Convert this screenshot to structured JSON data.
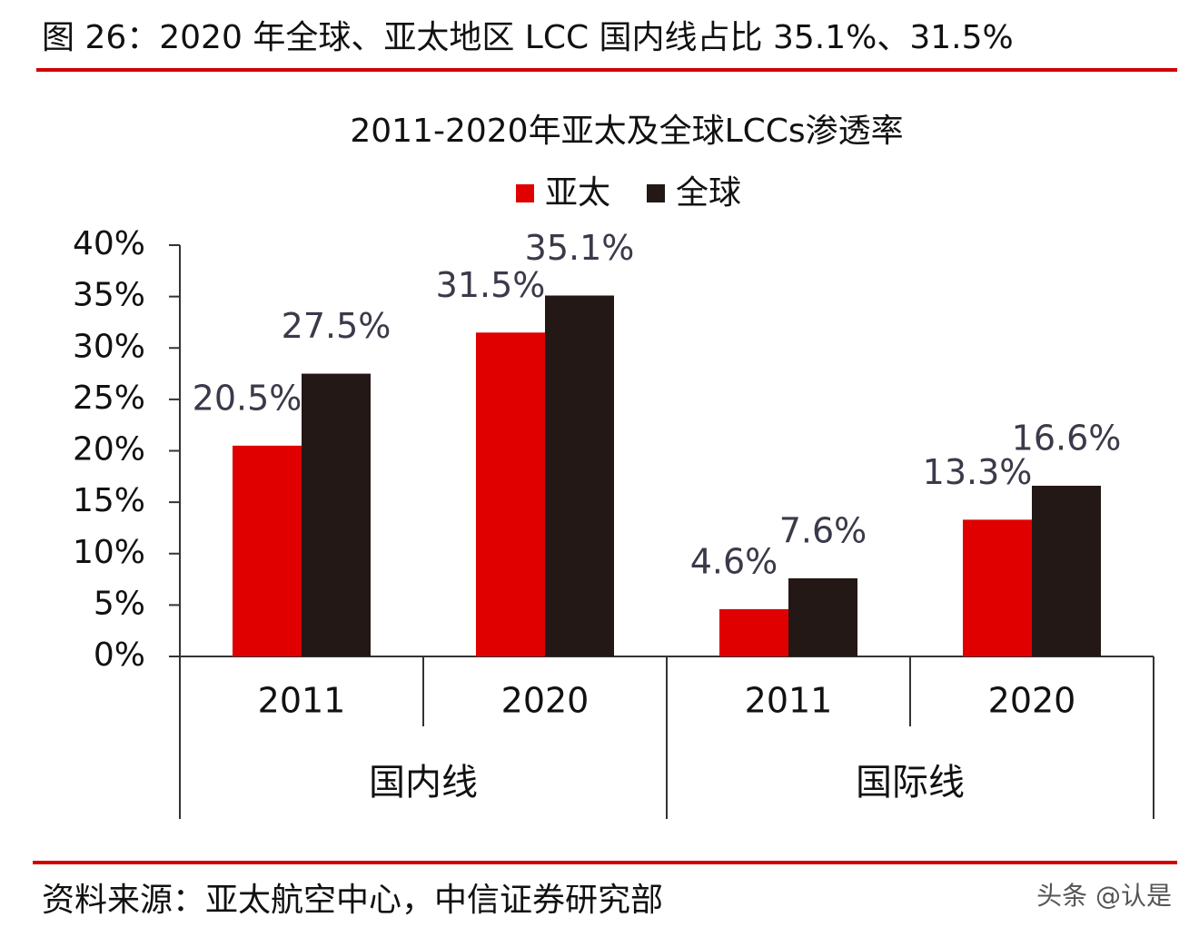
{
  "header": "图 26：2020 年全球、亚太地区 LCC 国内线占比 35.1%、31.5%",
  "chart_data": {
    "type": "bar",
    "title": "2011-2020年亚太及全球LCCs渗透率",
    "categories": [
      "2011",
      "2020",
      "2011",
      "2020"
    ],
    "groups": [
      "国内线",
      "国际线"
    ],
    "series": [
      {
        "name": "亚太",
        "color": "#e00000",
        "values": [
          20.5,
          31.5,
          4.6,
          13.3
        ],
        "value_labels": [
          "20.5%",
          "31.5%",
          "4.6%",
          "13.3%"
        ]
      },
      {
        "name": "全球",
        "color": "#231815",
        "values": [
          27.5,
          35.1,
          7.6,
          16.6
        ],
        "value_labels": [
          "27.5%",
          "35.1%",
          "7.6%",
          "16.6%"
        ]
      }
    ],
    "ylim": [
      0,
      40
    ],
    "yticks": [
      {
        "value": 0,
        "label": "0%"
      },
      {
        "value": 5,
        "label": "5%"
      },
      {
        "value": 10,
        "label": "10%"
      },
      {
        "value": 15,
        "label": "15%"
      },
      {
        "value": 20,
        "label": "20%"
      },
      {
        "value": 25,
        "label": "25%"
      },
      {
        "value": 30,
        "label": "30%"
      },
      {
        "value": 35,
        "label": "35%"
      },
      {
        "value": 40,
        "label": "40%"
      }
    ],
    "legend": "top",
    "grid": false
  },
  "footer": {
    "source": "资料来源：亚太航空中心，中信证券研究部",
    "watermark": "头条 @认是"
  }
}
